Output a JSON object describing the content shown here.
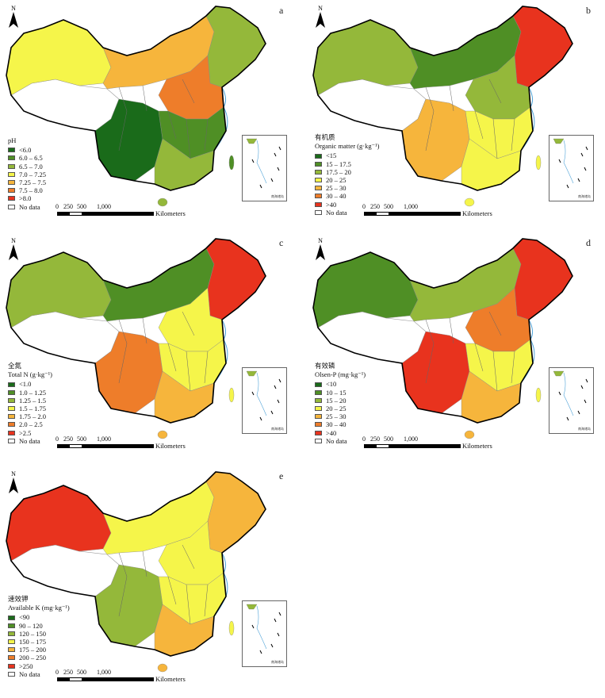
{
  "north_label": "N",
  "scale": {
    "ticks": [
      "0",
      "250",
      "500",
      "1,000"
    ],
    "unit": "Kilometers"
  },
  "inset_label": "南海诸岛",
  "no_data_color": "#ffffff",
  "panels": [
    {
      "letter": "a",
      "title_cn": "",
      "title": "pH",
      "classes": [
        {
          "label": "<6.0",
          "color": "#1a6b1a"
        },
        {
          "label": "6.0 – 6.5",
          "color": "#4f8f25"
        },
        {
          "label": "6.5 – 7.0",
          "color": "#94b83a"
        },
        {
          "label": "7.0 – 7.25",
          "color": "#f5f54a"
        },
        {
          "label": "7.25 – 7.5",
          "color": "#f6b53c"
        },
        {
          "label": "7.5 – 8.0",
          "color": "#ee7d2a"
        },
        {
          "label": ">8.0",
          "color": "#e8331e"
        }
      ],
      "no_data": "No data"
    },
    {
      "letter": "b",
      "title_cn": "有机质",
      "title": "Organic matter (g·kg⁻¹)",
      "classes": [
        {
          "label": "<15",
          "color": "#1a6b1a"
        },
        {
          "label": "15 – 17.5",
          "color": "#4f8f25"
        },
        {
          "label": "17.5 – 20",
          "color": "#94b83a"
        },
        {
          "label": "20 – 25",
          "color": "#f5f54a"
        },
        {
          "label": "25 – 30",
          "color": "#f6b53c"
        },
        {
          "label": "30 – 40",
          "color": "#ee7d2a"
        },
        {
          "label": ">40",
          "color": "#e8331e"
        }
      ],
      "no_data": "No data"
    },
    {
      "letter": "c",
      "title_cn": "全氮",
      "title": "Total N (g·kg⁻¹)",
      "classes": [
        {
          "label": "<1.0",
          "color": "#1a6b1a"
        },
        {
          "label": "1.0 – 1.25",
          "color": "#4f8f25"
        },
        {
          "label": "1.25 – 1.5",
          "color": "#94b83a"
        },
        {
          "label": "1.5 – 1.75",
          "color": "#f5f54a"
        },
        {
          "label": "1.75 – 2.0",
          "color": "#f6b53c"
        },
        {
          "label": "2.0 – 2.5",
          "color": "#ee7d2a"
        },
        {
          "label": ">2.5",
          "color": "#e8331e"
        }
      ],
      "no_data": "No data"
    },
    {
      "letter": "d",
      "title_cn": "有效磷",
      "title": "Olsen-P (mg·kg⁻¹)",
      "classes": [
        {
          "label": "<10",
          "color": "#1a6b1a"
        },
        {
          "label": "10 – 15",
          "color": "#4f8f25"
        },
        {
          "label": "15 – 20",
          "color": "#94b83a"
        },
        {
          "label": "20 – 25",
          "color": "#f5f54a"
        },
        {
          "label": "25 – 30",
          "color": "#f6b53c"
        },
        {
          "label": "30 – 40",
          "color": "#ee7d2a"
        },
        {
          "label": ">40",
          "color": "#e8331e"
        }
      ],
      "no_data": "No data"
    },
    {
      "letter": "e",
      "title_cn": "速效钾",
      "title": "Available K (mg·kg⁻¹)",
      "classes": [
        {
          "label": "<90",
          "color": "#1a6b1a"
        },
        {
          "label": "90 – 120",
          "color": "#4f8f25"
        },
        {
          "label": "120 – 150",
          "color": "#94b83a"
        },
        {
          "label": "150 – 175",
          "color": "#f5f54a"
        },
        {
          "label": "175 – 200",
          "color": "#f6b53c"
        },
        {
          "label": "200 – 250",
          "color": "#ee7d2a"
        },
        {
          "label": ">250",
          "color": "#e8331e"
        }
      ],
      "no_data": "No data"
    }
  ]
}
